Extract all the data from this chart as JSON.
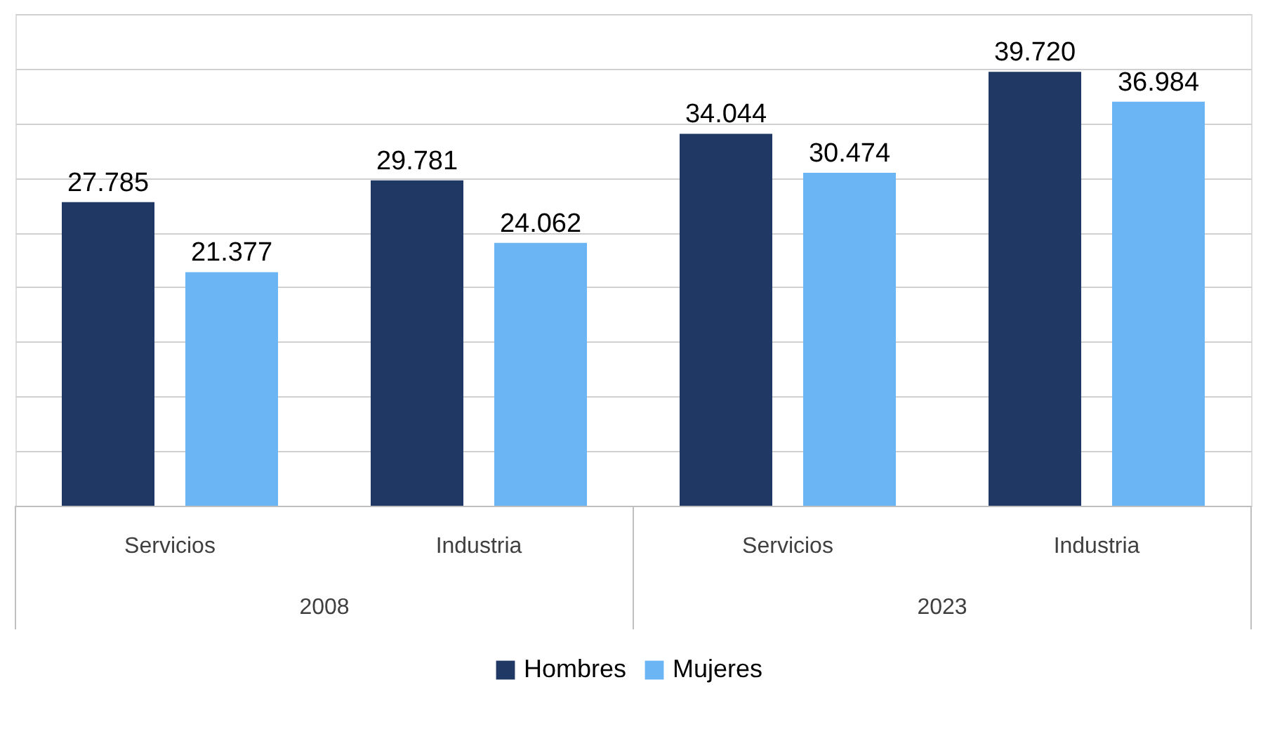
{
  "chart_data": {
    "type": "bar",
    "categories": [
      "Servicios",
      "Industria",
      "Servicios",
      "Industria"
    ],
    "series": [
      {
        "name": "Hombres",
        "color": "#1f3864",
        "values": [
          27785,
          29781,
          34044,
          39720
        ],
        "value_labels": [
          "27.785",
          "29.781",
          "34.044",
          "39.720"
        ]
      },
      {
        "name": "Mujeres",
        "color": "#6bb5f5",
        "values": [
          21377,
          24062,
          30474,
          36984
        ],
        "value_labels": [
          "21.377",
          "24.062",
          "30.474",
          "36.984"
        ]
      }
    ],
    "annotations": [
      "2008",
      "2023"
    ],
    "ylim": [
      0,
      45000
    ],
    "grid": "y",
    "legend": "bottom",
    "tick_labels": "x"
  }
}
